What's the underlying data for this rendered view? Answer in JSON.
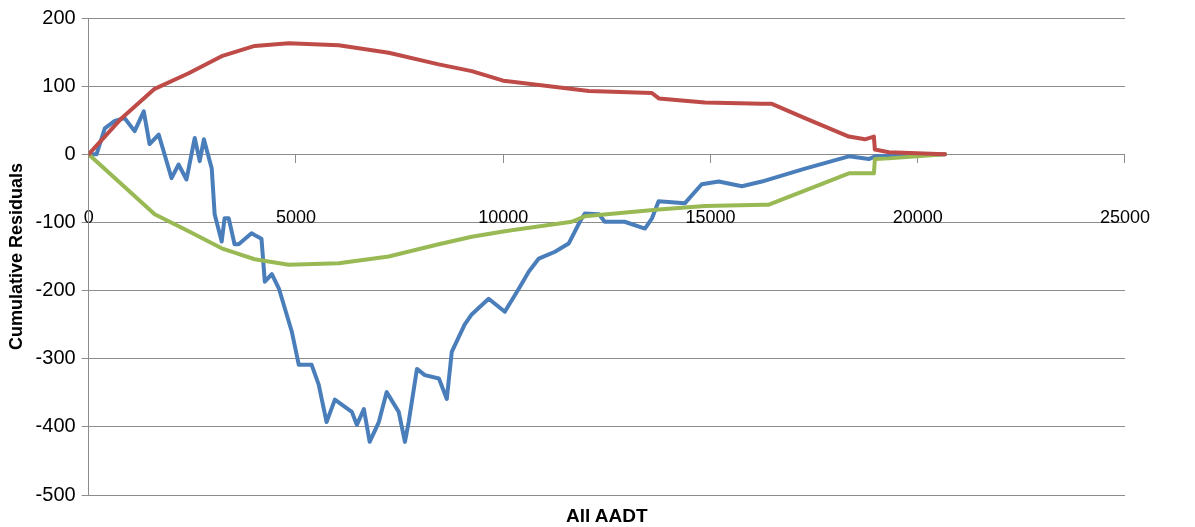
{
  "chart_data": {
    "type": "line",
    "xlabel": "All AADT",
    "ylabel": "Cumulative Residuals",
    "xlim": [
      0,
      25000
    ],
    "xticks": [
      0,
      5000,
      10000,
      15000,
      20000,
      25000
    ],
    "ylim": [
      -500,
      200
    ],
    "yticks": [
      -500,
      -400,
      -300,
      -200,
      -100,
      0,
      100,
      200
    ],
    "grid": "y",
    "marker": "none",
    "line_style": "solid",
    "series": [
      {
        "color": "#be4b48",
        "x": [
          0,
          796,
          1593,
          2413,
          3209,
          4006,
          4826,
          6033,
          7239,
          8446,
          9242,
          10000,
          12066,
          13586,
          13755,
          14865,
          16240,
          16482,
          17278,
          18340,
          18726,
          18943,
          18967,
          19305,
          20656
        ],
        "values": [
          0,
          53,
          96,
          119,
          144,
          159,
          163,
          160,
          149,
          132,
          122,
          108,
          93,
          90,
          82,
          76,
          74,
          74,
          53,
          26,
          22,
          26,
          7,
          3,
          0
        ]
      },
      {
        "color": "#98b954",
        "x": [
          0,
          796,
          1593,
          2413,
          3209,
          4006,
          4826,
          6033,
          7239,
          8446,
          9242,
          10039,
          11655,
          11969,
          13755,
          14865,
          16410,
          18340,
          18943,
          18967,
          19305,
          20656
        ],
        "values": [
          0,
          -44,
          -88,
          -113,
          -138,
          -154,
          -162,
          -160,
          -150,
          -132,
          -121,
          -113,
          -99,
          -91,
          -81,
          -76,
          -74,
          -28,
          -28,
          -7,
          -6,
          0
        ]
      },
      {
        "color": "#4a7ebb",
        "x": [
          0,
          190,
          390,
          630,
          870,
          1110,
          1330,
          1470,
          1690,
          2000,
          2170,
          2360,
          2560,
          2680,
          2780,
          2970,
          3040,
          3210,
          3280,
          3380,
          3520,
          3620,
          3930,
          4170,
          4250,
          4420,
          4590,
          4900,
          5070,
          5380,
          5550,
          5740,
          5940,
          6350,
          6470,
          6640,
          6780,
          7000,
          7190,
          7480,
          7630,
          7720,
          7920,
          8110,
          8450,
          8640,
          8760,
          9070,
          9240,
          9650,
          10040,
          10380,
          10620,
          10860,
          11250,
          11580,
          11850,
          11970,
          12310,
          12450,
          12930,
          13420,
          13590,
          13750,
          14380,
          14790,
          15200,
          15760,
          16240,
          17280,
          18340,
          18820,
          18970,
          20660
        ],
        "values": [
          0,
          0,
          38,
          49,
          53,
          34,
          63,
          15,
          29,
          -35,
          -15,
          -37,
          24,
          -10,
          22,
          -21,
          -88,
          -128,
          -94,
          -94,
          -132,
          -132,
          -116,
          -124,
          -187,
          -176,
          -197,
          -260,
          -309,
          -309,
          -338,
          -393,
          -360,
          -378,
          -397,
          -374,
          -422,
          -393,
          -349,
          -378,
          -422,
          -393,
          -315,
          -324,
          -329,
          -359,
          -290,
          -250,
          -235,
          -212,
          -231,
          -197,
          -172,
          -153,
          -143,
          -131,
          -99,
          -87,
          -88,
          -99,
          -99,
          -109,
          -94,
          -69,
          -72,
          -44,
          -40,
          -47,
          -40,
          -21,
          -3,
          -7,
          -3,
          0
        ]
      }
    ]
  }
}
